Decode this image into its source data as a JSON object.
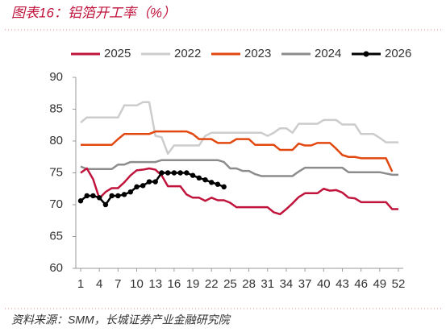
{
  "chart_data": {
    "type": "line",
    "title": "图表16：铝箔开工率（%）",
    "source": "资料来源：SMM，长城证券产业金融研究院",
    "x": [
      1,
      2,
      3,
      4,
      5,
      6,
      7,
      8,
      9,
      10,
      11,
      12,
      13,
      14,
      15,
      16,
      17,
      18,
      19,
      20,
      21,
      22,
      23,
      24,
      25,
      26,
      27,
      28,
      29,
      30,
      31,
      32,
      33,
      34,
      35,
      36,
      37,
      38,
      39,
      40,
      41,
      42,
      43,
      44,
      45,
      46,
      47,
      48,
      49,
      50,
      51,
      52
    ],
    "xlim": [
      1,
      52
    ],
    "xticks": [
      1,
      4,
      7,
      10,
      13,
      16,
      19,
      22,
      25,
      28,
      31,
      34,
      37,
      40,
      43,
      46,
      49,
      52
    ],
    "ylim": [
      60,
      90
    ],
    "yticks": [
      60,
      65,
      70,
      75,
      80,
      85,
      90
    ],
    "grid": false,
    "legend": "top",
    "series": [
      {
        "name": "2025",
        "color": "#c0143c",
        "values": [
          75.0,
          75.7,
          74.0,
          71.0,
          72.0,
          72.6,
          72.6,
          73.5,
          74.6,
          75.4,
          75.5,
          75.7,
          75.5,
          74.6,
          72.9,
          72.9,
          72.9,
          71.6,
          71.1,
          71.1,
          70.6,
          71.1,
          70.7,
          70.7,
          70.3,
          69.6,
          69.6,
          69.6,
          69.6,
          69.6,
          69.6,
          68.8,
          68.5,
          69.3,
          70.2,
          71.2,
          71.8,
          71.8,
          71.8,
          72.5,
          72.2,
          72.3,
          71.9,
          71.1,
          71.0,
          70.4,
          70.4,
          70.4,
          70.4,
          70.4,
          69.3,
          69.3
        ]
      },
      {
        "name": "2022",
        "color": "#cccccc",
        "values": [
          82.9,
          83.7,
          83.7,
          83.7,
          83.7,
          83.7,
          83.7,
          85.6,
          85.6,
          85.6,
          86.1,
          86.1,
          80.8,
          80.6,
          78.0,
          79.3,
          79.3,
          79.3,
          79.3,
          79.3,
          80.8,
          81.3,
          81.3,
          81.3,
          81.3,
          81.3,
          81.3,
          81.3,
          81.3,
          81.3,
          80.8,
          81.3,
          82.0,
          82.0,
          81.3,
          82.7,
          82.7,
          82.7,
          82.7,
          83.3,
          83.3,
          83.3,
          82.6,
          82.6,
          82.6,
          81.1,
          81.1,
          81.1,
          80.5,
          79.8,
          79.8,
          79.8
        ]
      },
      {
        "name": "2023",
        "color": "#e2470f",
        "values": [
          79.4,
          79.4,
          79.4,
          79.4,
          79.4,
          79.4,
          80.3,
          81.1,
          81.1,
          81.1,
          81.1,
          81.1,
          81.5,
          81.5,
          81.5,
          81.5,
          81.5,
          81.5,
          81.1,
          80.3,
          80.3,
          80.3,
          79.7,
          79.7,
          79.7,
          80.3,
          80.3,
          80.3,
          79.4,
          79.4,
          79.4,
          79.4,
          78.6,
          78.6,
          78.6,
          79.6,
          79.3,
          79.3,
          79.7,
          79.7,
          79.7,
          78.8,
          77.8,
          77.5,
          77.5,
          77.3,
          77.3,
          77.3,
          77.3,
          77.3,
          75.2,
          null
        ]
      },
      {
        "name": "2024",
        "color": "#8c8c8c",
        "values": [
          76.0,
          75.6,
          75.6,
          75.6,
          75.6,
          75.6,
          76.3,
          76.3,
          76.7,
          76.7,
          76.7,
          76.7,
          76.7,
          77.0,
          77.0,
          77.0,
          77.0,
          77.0,
          77.0,
          77.0,
          77.0,
          77.0,
          77.0,
          76.7,
          75.7,
          75.7,
          75.3,
          75.3,
          74.8,
          74.5,
          74.5,
          74.5,
          74.5,
          74.5,
          74.5,
          75.2,
          75.8,
          75.8,
          75.8,
          75.8,
          75.8,
          75.8,
          75.8,
          75.1,
          75.1,
          75.1,
          75.1,
          75.1,
          75.1,
          74.9,
          74.7,
          74.7
        ]
      },
      {
        "name": "2026",
        "color": "#000000",
        "marker": "circle",
        "values": [
          70.6,
          71.4,
          71.4,
          71.1,
          70.0,
          71.4,
          71.4,
          71.6,
          72.0,
          72.8,
          73.0,
          73.6,
          73.6,
          75.0,
          75.0,
          75.0,
          75.0,
          75.0,
          74.6,
          74.2,
          73.9,
          73.5,
          73.2,
          72.8,
          null,
          null,
          null,
          null,
          null,
          null,
          null,
          null,
          null,
          null,
          null,
          null,
          null,
          null,
          null,
          null,
          null,
          null,
          null,
          null,
          null,
          null,
          null,
          null,
          null,
          null,
          null,
          null
        ]
      }
    ]
  }
}
